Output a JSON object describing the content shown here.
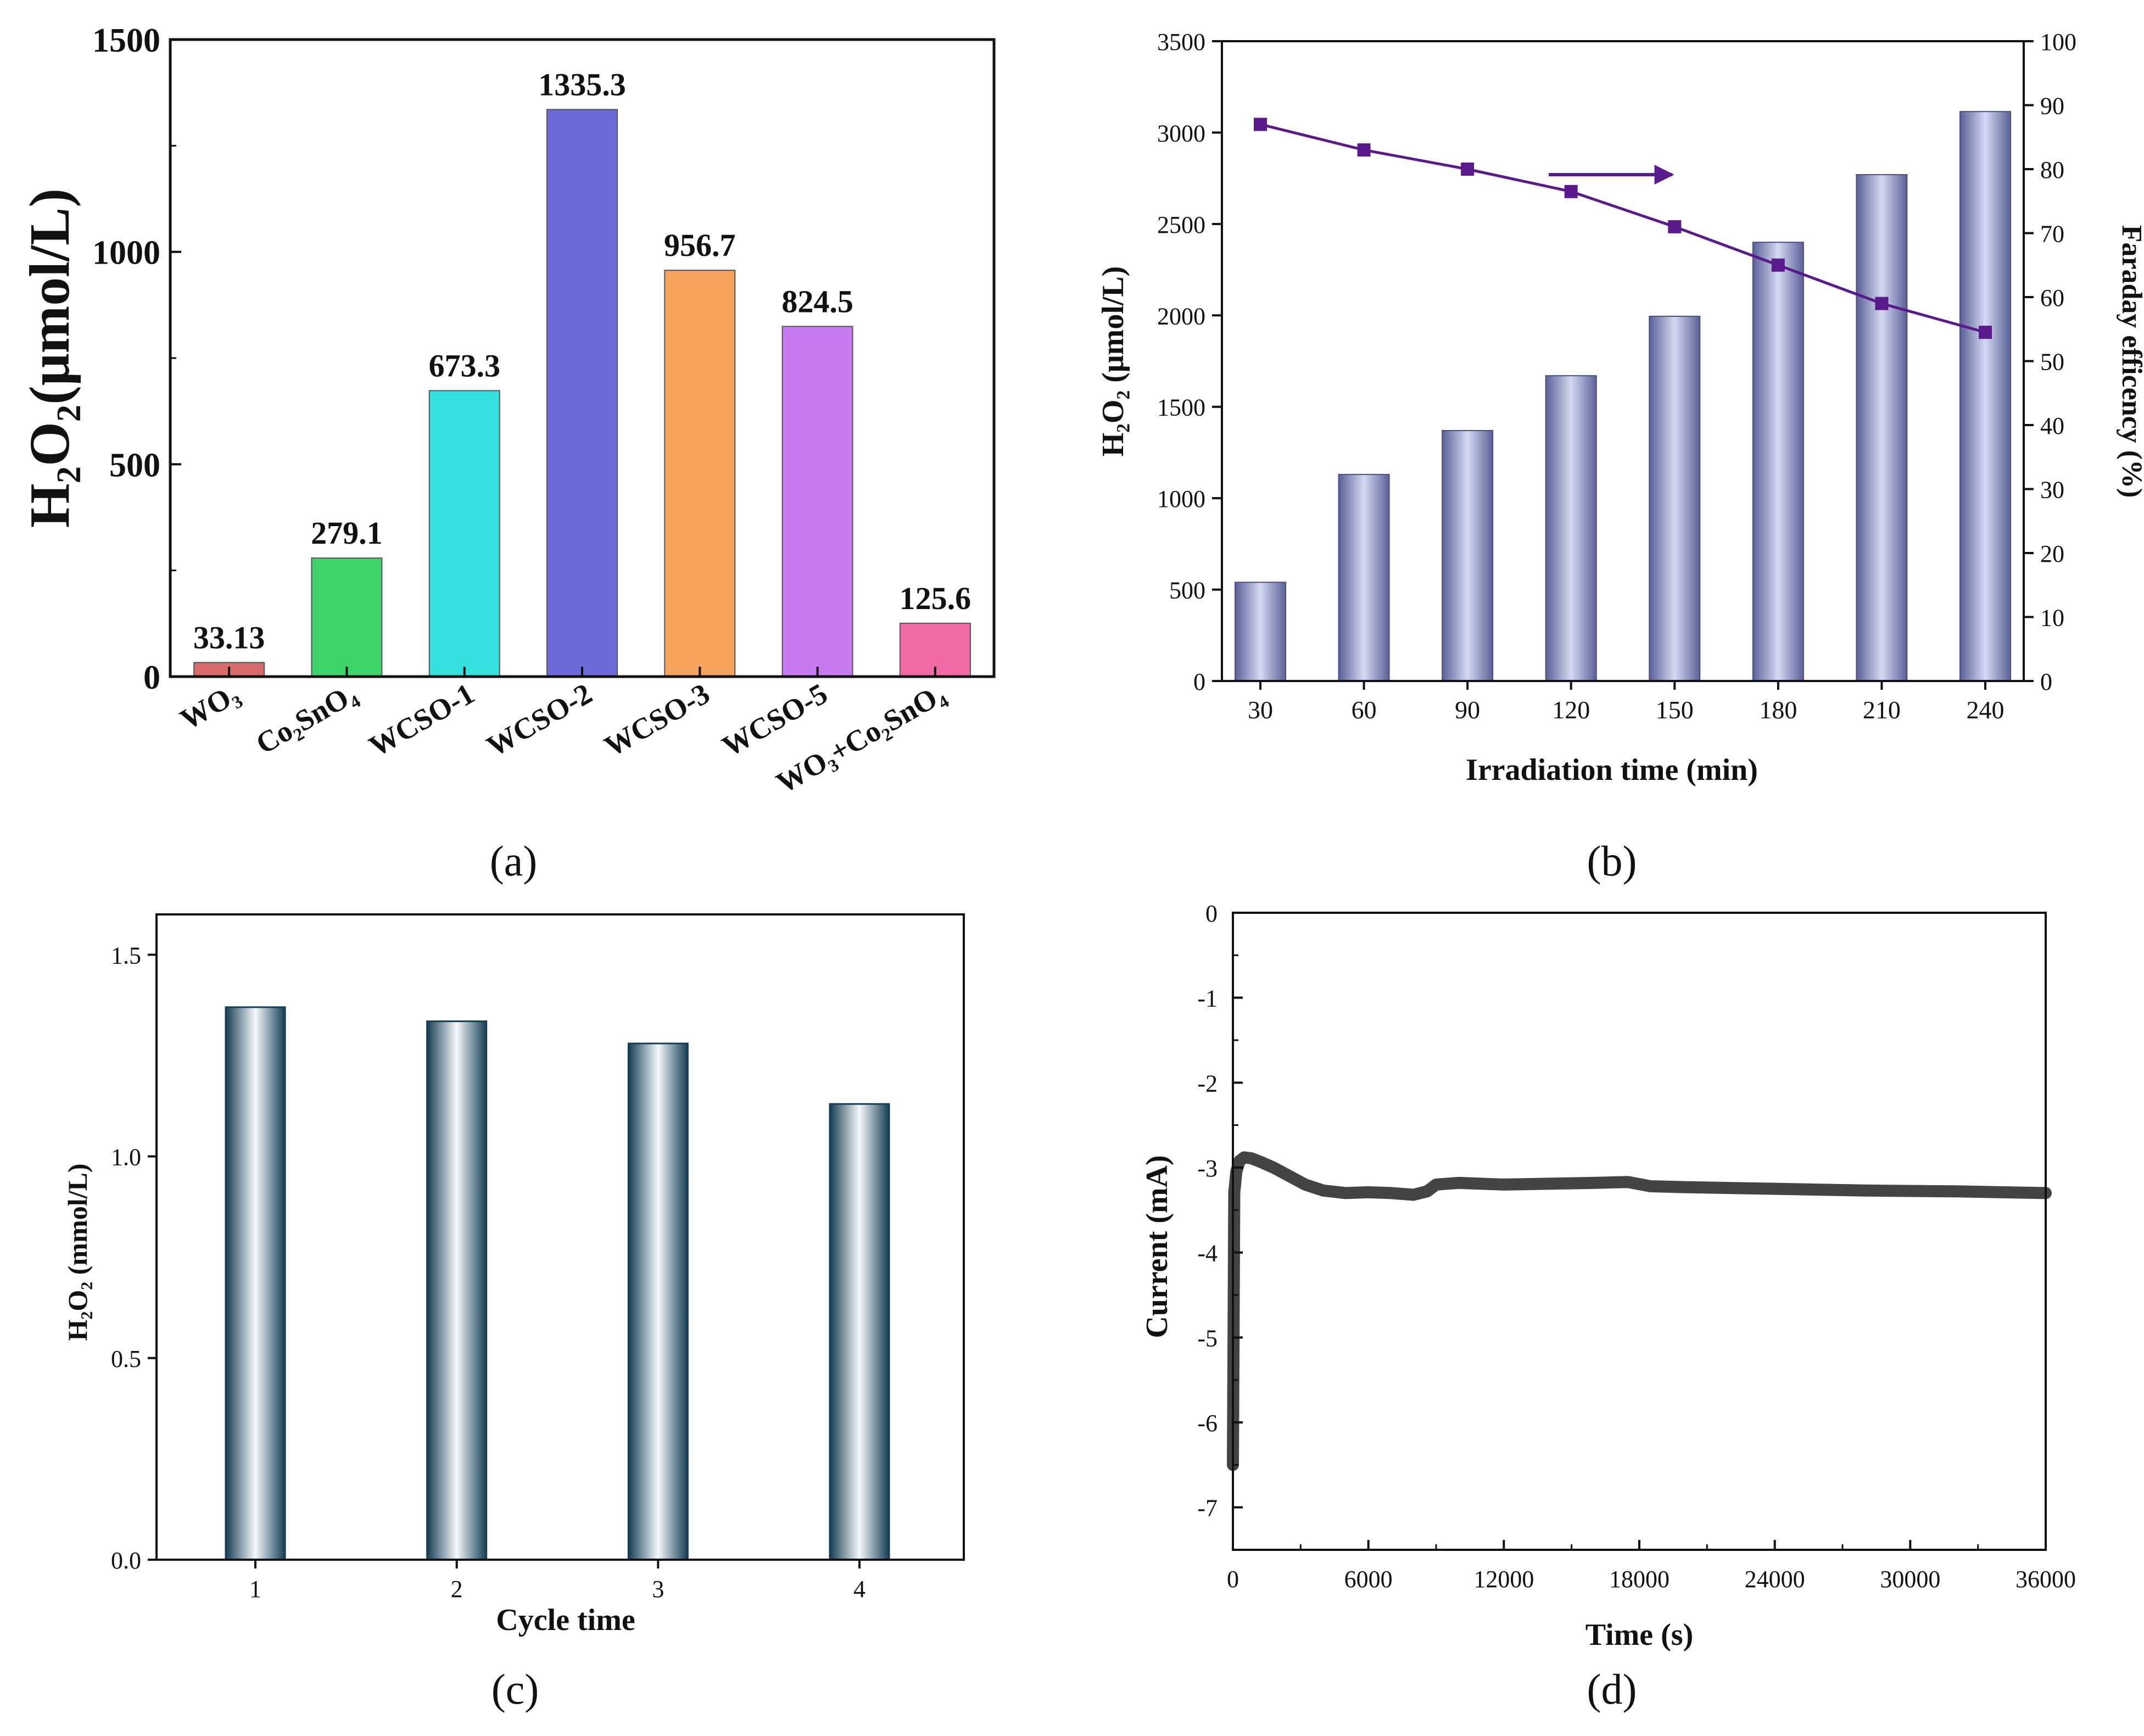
{
  "chart_data": [
    {
      "id": "a",
      "type": "bar",
      "panel_label": "(a)",
      "ylabel": "H₂O₂(μmol/L)",
      "xlabel": "",
      "ylim": [
        0,
        1500
      ],
      "yticks": [
        0,
        500,
        1000,
        1500
      ],
      "categories": [
        "WO₃",
        "Co₂SnO₄",
        "WCSO-1",
        "WCSO-2",
        "WCSO-3",
        "WCSO-5",
        "WO₃+Co₂SnO₄"
      ],
      "values": [
        33.13,
        279.1,
        673.3,
        1335.3,
        956.7,
        824.5,
        125.6
      ],
      "data_labels": [
        "33.13",
        "279.1",
        "673.3",
        "1335.3",
        "956.7",
        "824.5",
        "125.6"
      ],
      "colors": [
        "#d96a6a",
        "#3fd46a",
        "#33e0dd",
        "#6a6ad8",
        "#f5a25c",
        "#c77af0",
        "#f06aa8"
      ],
      "grid": false
    },
    {
      "id": "b",
      "type": "bar",
      "panel_label": "(b)",
      "xlabel": "Irradiation time (min)",
      "ylabel": "H₂O₂ (μmol/L)",
      "y2label": "Faraday efficency (%)",
      "categories": [
        "30",
        "60",
        "90",
        "120",
        "150",
        "180",
        "210",
        "240"
      ],
      "ylim": [
        0,
        3500
      ],
      "yticks": [
        0,
        500,
        1000,
        1500,
        2000,
        2500,
        3000,
        3500
      ],
      "y2lim": [
        0,
        100
      ],
      "y2ticks": [
        0,
        10,
        20,
        30,
        40,
        50,
        60,
        70,
        80,
        90,
        100
      ],
      "series": [
        {
          "kind": "bar",
          "axis": "left",
          "values": [
            540,
            1130,
            1370,
            1670,
            1995,
            2400,
            2770,
            3115
          ],
          "color": "#7f86b4"
        },
        {
          "kind": "line",
          "axis": "right",
          "values": [
            87,
            83,
            80,
            76.5,
            71,
            65,
            59,
            54.5
          ],
          "color": "#5a1a8c"
        }
      ],
      "annotation": "arrow pointing right toward the right axis",
      "grid": false
    },
    {
      "id": "c",
      "type": "bar",
      "panel_label": "(c)",
      "xlabel": "Cycle time",
      "ylabel": "H₂O₂ (mmol/L)",
      "categories": [
        "1",
        "2",
        "3",
        "4"
      ],
      "values": [
        1.37,
        1.335,
        1.28,
        1.13
      ],
      "ylim": [
        0,
        1.6
      ],
      "yticks": [
        "0.0",
        "0.5",
        "1.0",
        "1.5"
      ],
      "color": "#1e5570",
      "grid": false
    },
    {
      "id": "d",
      "type": "line",
      "panel_label": "(d)",
      "xlabel": "Time (s)",
      "ylabel": "Current (mA)",
      "xlim": [
        0,
        36000
      ],
      "ylim": [
        -7.5,
        0
      ],
      "xticks": [
        0,
        6000,
        12000,
        18000,
        24000,
        30000,
        36000
      ],
      "yticks": [
        0,
        -1,
        -2,
        -3,
        -4,
        -5,
        -6,
        -7
      ],
      "series": [
        {
          "x": [
            0,
            60,
            150,
            300,
            500,
            800,
            1200,
            1800,
            2500,
            3200,
            4000,
            5000,
            6000,
            7000,
            8000,
            8600,
            9000,
            10000,
            12000,
            14000,
            16000,
            17500,
            18500,
            20000,
            24000,
            28000,
            32000,
            36000
          ],
          "y": [
            -6.5,
            -3.3,
            -3.05,
            -2.92,
            -2.88,
            -2.89,
            -2.93,
            -3.0,
            -3.1,
            -3.2,
            -3.27,
            -3.3,
            -3.29,
            -3.3,
            -3.32,
            -3.28,
            -3.2,
            -3.18,
            -3.2,
            -3.19,
            -3.18,
            -3.17,
            -3.22,
            -3.23,
            -3.25,
            -3.27,
            -3.28,
            -3.3
          ],
          "color": "#444444"
        }
      ],
      "grid": false
    }
  ]
}
